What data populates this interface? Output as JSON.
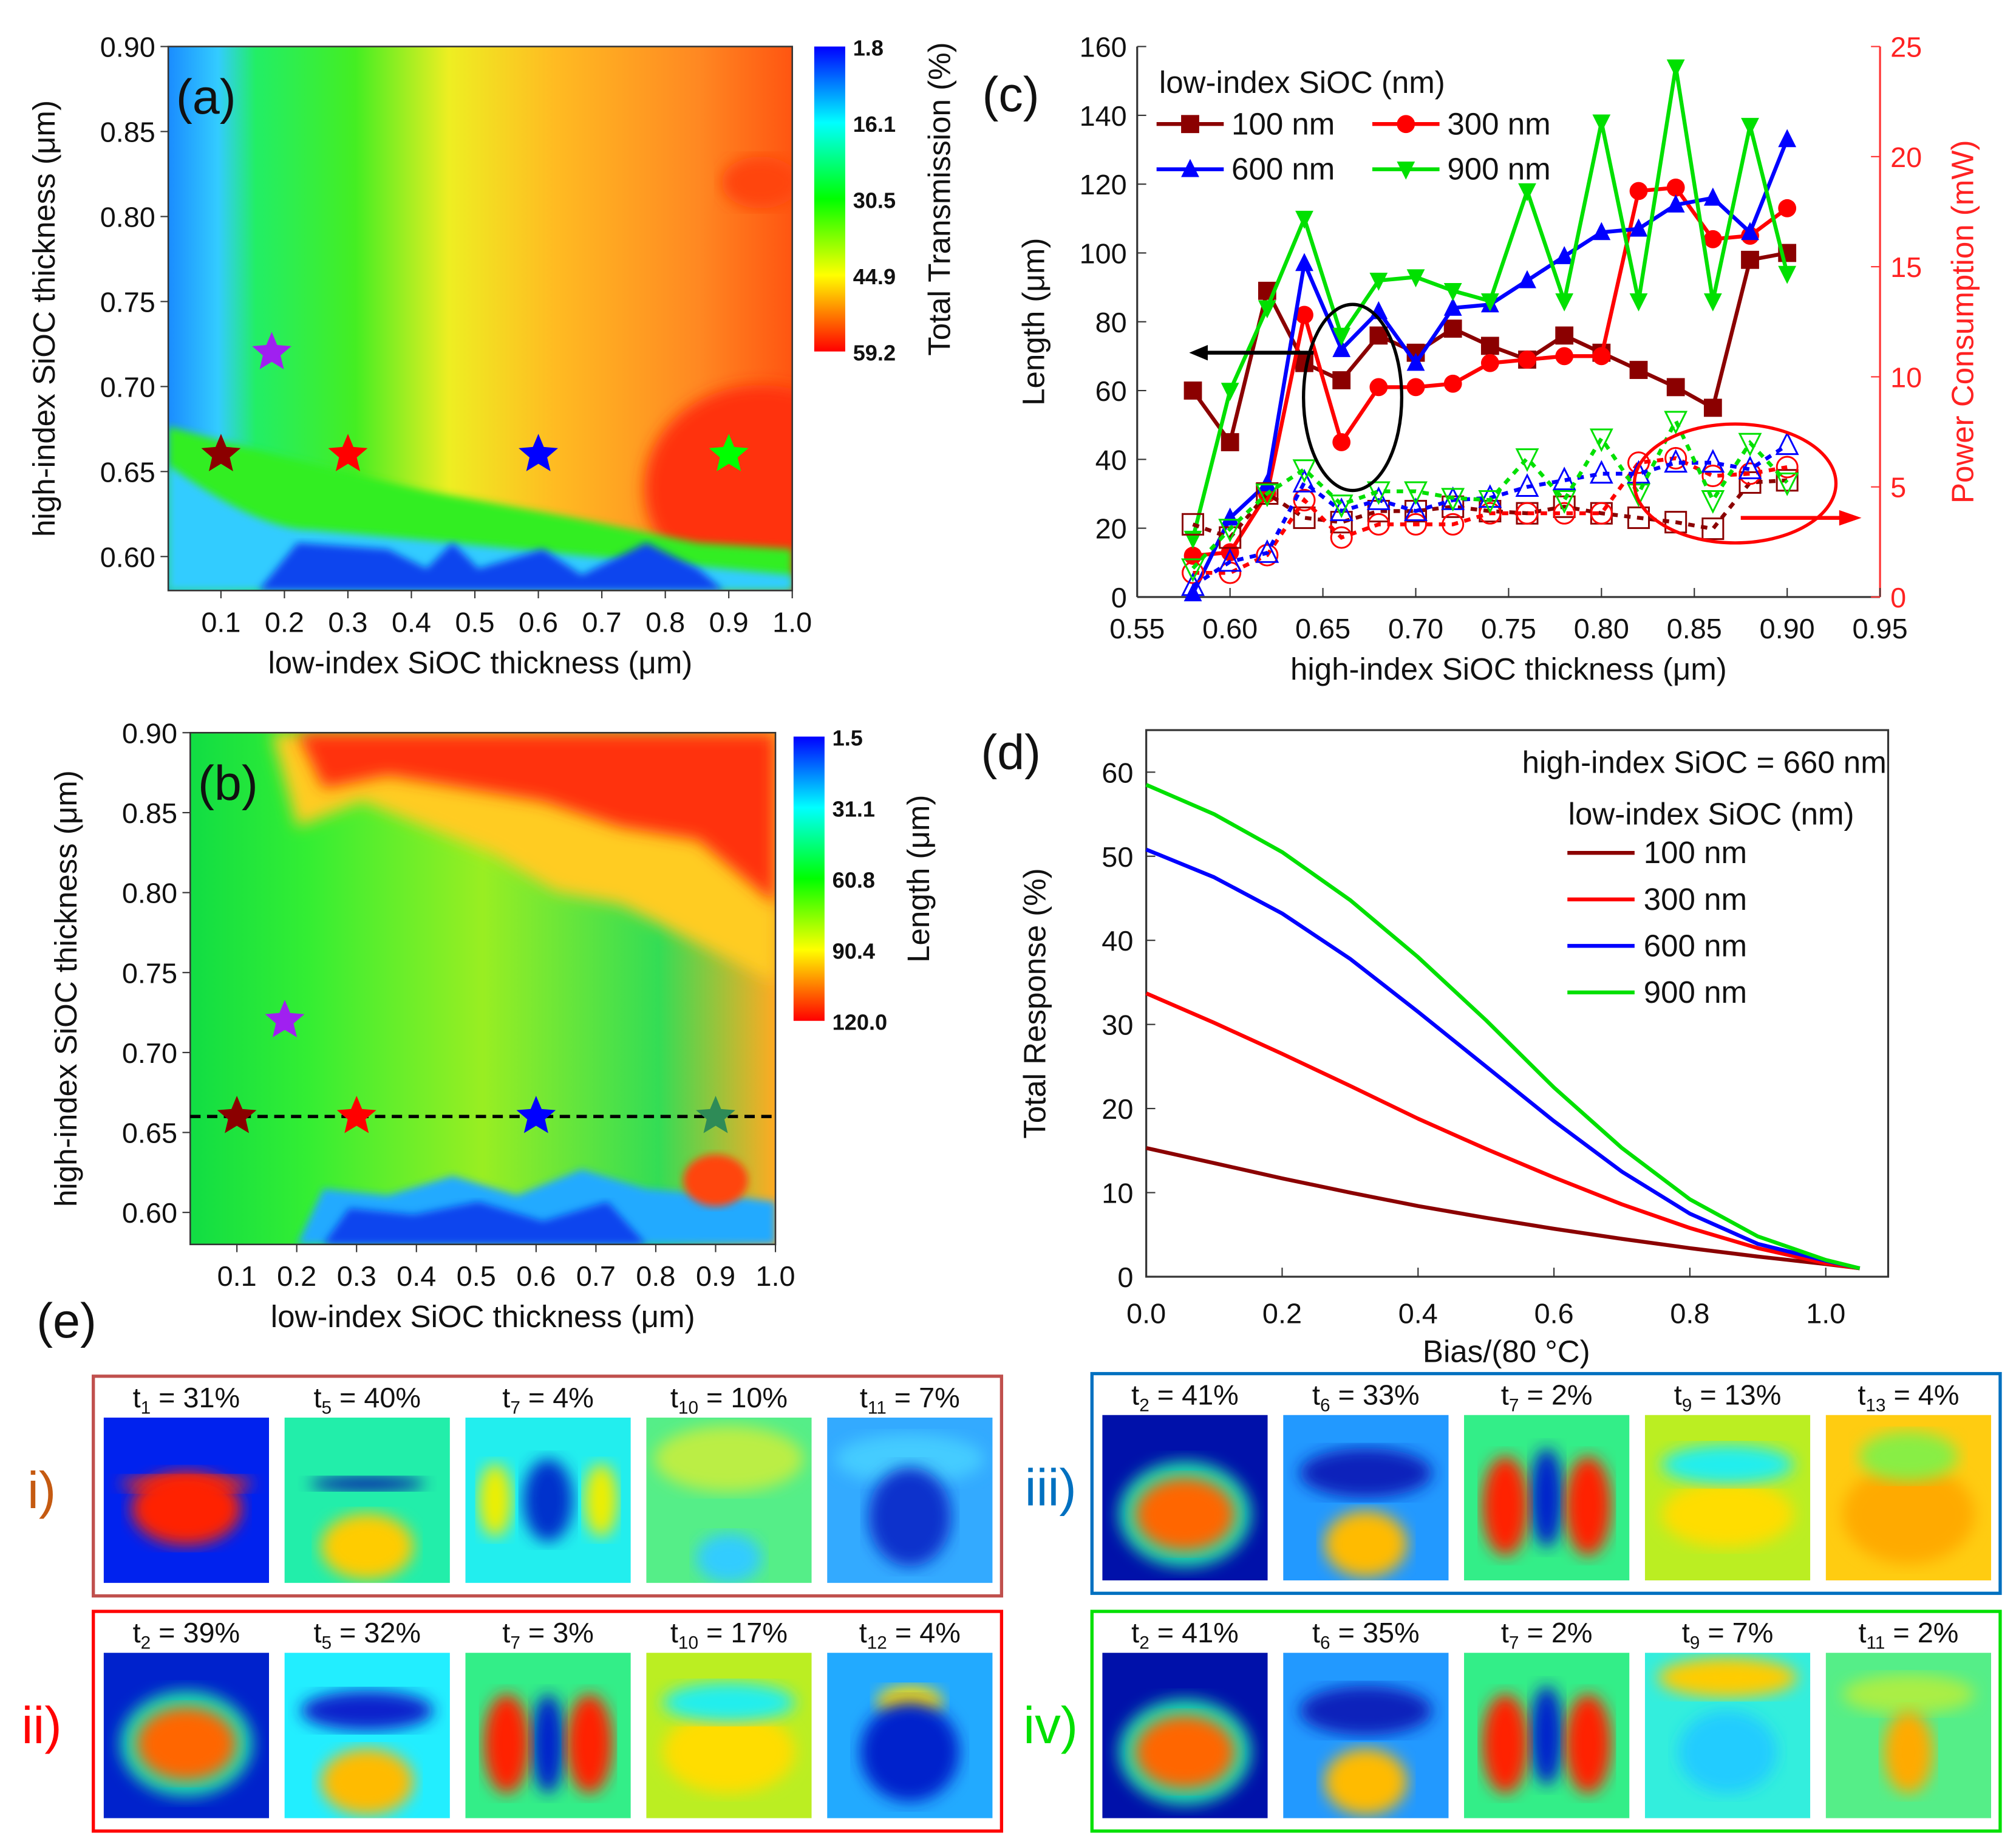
{
  "chart_data": [
    {
      "panel": "(a)",
      "type": "heatmap",
      "xlabel": "low-index SiOC thickness (μm)",
      "ylabel": "high-index SiOC thickness (μm)",
      "xticks": [
        "0.1",
        "0.2",
        "0.3",
        "0.4",
        "0.5",
        "0.6",
        "0.7",
        "0.8",
        "0.9",
        "1.0"
      ],
      "yticks": [
        "0.60",
        "0.65",
        "0.70",
        "0.75",
        "0.80",
        "0.85",
        "0.90"
      ],
      "xlim": [
        0.017,
        1.0
      ],
      "ylim": [
        0.58,
        0.9
      ],
      "colorbar": {
        "title": "Total Transmission (%)",
        "ticks": [
          "1.8",
          "16.1",
          "30.5",
          "44.9",
          "59.2"
        ],
        "colormap": [
          "#0000ff",
          "#00ffff",
          "#00ff00",
          "#ffff00",
          "#ff0000"
        ]
      },
      "markers": [
        {
          "x": 0.1,
          "y": 0.66,
          "color": "#8b0000",
          "shape": "star"
        },
        {
          "x": 0.18,
          "y": 0.72,
          "color": "#a020f0",
          "shape": "star"
        },
        {
          "x": 0.3,
          "y": 0.66,
          "color": "#ff0000",
          "shape": "star"
        },
        {
          "x": 0.6,
          "y": 0.66,
          "color": "#0000ff",
          "shape": "star"
        },
        {
          "x": 0.9,
          "y": 0.66,
          "color": "#00ff00",
          "shape": "star"
        }
      ]
    },
    {
      "panel": "(b)",
      "type": "heatmap",
      "xlabel": "low-index SiOC thickness (μm)",
      "ylabel": "high-index SiOC thickness (μm)",
      "xticks": [
        "0.1",
        "0.2",
        "0.3",
        "0.4",
        "0.5",
        "0.6",
        "0.7",
        "0.8",
        "0.9",
        "1.0"
      ],
      "yticks": [
        "0.60",
        "0.65",
        "0.70",
        "0.75",
        "0.80",
        "0.85",
        "0.90"
      ],
      "xlim": [
        0.022,
        1.0
      ],
      "ylim": [
        0.58,
        0.9
      ],
      "colorbar": {
        "title": "Length (μm)",
        "ticks": [
          "1.5",
          "31.1",
          "60.8",
          "90.4",
          "120.0"
        ],
        "colormap": [
          "#0000ff",
          "#00ffff",
          "#00ff00",
          "#ffff00",
          "#ff0000"
        ]
      },
      "reference_line": {
        "y": 0.66,
        "style": "dashed"
      },
      "markers": [
        {
          "x": 0.1,
          "y": 0.66,
          "color": "#8b0000",
          "shape": "star"
        },
        {
          "x": 0.18,
          "y": 0.72,
          "color": "#a020f0",
          "shape": "star"
        },
        {
          "x": 0.3,
          "y": 0.66,
          "color": "#ff0000",
          "shape": "star"
        },
        {
          "x": 0.6,
          "y": 0.66,
          "color": "#0000ff",
          "shape": "star"
        },
        {
          "x": 0.9,
          "y": 0.66,
          "color": "#2e8b57",
          "shape": "star"
        }
      ]
    },
    {
      "panel": "(c)",
      "type": "line",
      "xlabel": "high-index SiOC thickness (μm)",
      "ylabel": "Length (μm)",
      "y2label": "Power Consumption (mW)",
      "xlim": [
        0.55,
        0.95
      ],
      "ylim": [
        0,
        160
      ],
      "y2lim": [
        0,
        25
      ],
      "xticks": [
        "0.55",
        "0.60",
        "0.65",
        "0.70",
        "0.75",
        "0.80",
        "0.85",
        "0.90",
        "0.95"
      ],
      "yticks": [
        "0",
        "20",
        "40",
        "60",
        "80",
        "100",
        "120",
        "140",
        "160"
      ],
      "y2ticks": [
        "0",
        "5",
        "10",
        "15",
        "20",
        "25"
      ],
      "legend_title": "low-index SiOC (nm)",
      "legend_placement": "top-left",
      "x": [
        0.58,
        0.6,
        0.62,
        0.64,
        0.66,
        0.68,
        0.7,
        0.72,
        0.74,
        0.76,
        0.78,
        0.8,
        0.82,
        0.84,
        0.86,
        0.88,
        0.9
      ],
      "series": [
        {
          "name": "100 nm",
          "color": "#8b0000",
          "marker": "square",
          "axis": "left",
          "values": [
            60,
            45,
            89,
            68,
            63,
            76,
            71,
            78,
            73,
            69,
            76,
            71,
            66,
            61,
            55,
            98,
            100
          ]
        },
        {
          "name": "300 nm",
          "color": "#ff0000",
          "marker": "circle",
          "axis": "left",
          "values": [
            12,
            13,
            30,
            82,
            45,
            61,
            61,
            62,
            68,
            69,
            70,
            70,
            118,
            119,
            104,
            105,
            113
          ]
        },
        {
          "name": "600 nm",
          "color": "#0000ff",
          "marker": "triangle-up",
          "axis": "left",
          "values": [
            1,
            23,
            33,
            97,
            72,
            83,
            68,
            84,
            85,
            92,
            99,
            106,
            107,
            114,
            116,
            106,
            133
          ]
        },
        {
          "name": "900 nm",
          "color": "#00e000",
          "marker": "triangle-down",
          "axis": "left",
          "values": [
            17,
            60,
            84,
            110,
            76,
            92,
            93,
            89,
            86,
            118,
            86,
            138,
            86,
            154,
            86,
            137,
            94
          ]
        },
        {
          "color": "#8b0000",
          "marker": "square-open",
          "axis": "right",
          "style": "dashed",
          "values": [
            3.3,
            2.7,
            4.7,
            3.6,
            3.4,
            3.9,
            3.9,
            4.1,
            3.9,
            3.8,
            4.1,
            3.8,
            3.6,
            3.4,
            3.1,
            5.2,
            5.3
          ]
        },
        {
          "color": "#ff0000",
          "marker": "circle-open",
          "axis": "right",
          "style": "dashed",
          "values": [
            1.1,
            1.1,
            1.9,
            4.4,
            2.7,
            3.3,
            3.3,
            3.3,
            3.8,
            3.8,
            3.8,
            3.8,
            6.1,
            6.3,
            5.5,
            5.6,
            5.9
          ]
        },
        {
          "color": "#0000ff",
          "marker": "triangle-up-open",
          "axis": "right",
          "style": "dashed",
          "values": [
            0.5,
            1.6,
            2.0,
            5.2,
            3.9,
            4.4,
            3.9,
            4.4,
            4.5,
            5.0,
            5.3,
            5.6,
            5.6,
            6.1,
            6.1,
            5.8,
            6.9
          ]
        },
        {
          "color": "#00e000",
          "marker": "triangle-down-open",
          "axis": "right",
          "style": "dashed",
          "values": [
            1.3,
            3.1,
            4.7,
            5.8,
            4.2,
            4.8,
            4.8,
            4.5,
            4.4,
            6.3,
            4.4,
            7.2,
            4.7,
            8.0,
            4.4,
            7.0,
            5.2
          ]
        }
      ]
    },
    {
      "panel": "(d)",
      "type": "line",
      "xlabel": "Bias/(80 °C)",
      "ylabel": "Total Response (%)",
      "xlim": [
        0,
        1.1
      ],
      "ylim": [
        0,
        65
      ],
      "xticks": [
        "0.0",
        "0.2",
        "0.4",
        "0.6",
        "0.8",
        "1.0"
      ],
      "yticks": [
        "0",
        "10",
        "20",
        "30",
        "40",
        "50",
        "60"
      ],
      "annotation": "high-index SiOC = 660 nm",
      "legend_title": "low-index SiOC (nm)",
      "legend_placement": "top-right",
      "x": [
        0,
        0.1,
        0.2,
        0.3,
        0.4,
        0.5,
        0.6,
        0.7,
        0.8,
        0.9,
        1.0,
        1.05
      ],
      "series": [
        {
          "name": "100 nm",
          "color": "#8b0000",
          "values": [
            15.3,
            13.5,
            11.7,
            10.0,
            8.4,
            7.0,
            5.7,
            4.5,
            3.4,
            2.4,
            1.5,
            1.0
          ]
        },
        {
          "name": "300 nm",
          "color": "#ff0000",
          "values": [
            33.7,
            30.2,
            26.5,
            22.7,
            18.8,
            15.2,
            11.8,
            8.6,
            5.8,
            3.4,
            1.6,
            1.0
          ]
        },
        {
          "name": "600 nm",
          "color": "#0000ff",
          "values": [
            50.8,
            47.5,
            43.2,
            37.8,
            31.5,
            25.0,
            18.5,
            12.5,
            7.5,
            3.9,
            1.9,
            1.0
          ]
        },
        {
          "name": "900 nm",
          "color": "#00e000",
          "values": [
            58.5,
            55.0,
            50.5,
            44.8,
            38.0,
            30.5,
            22.5,
            15.3,
            9.2,
            4.8,
            2.0,
            1.0
          ]
        }
      ]
    }
  ],
  "panel_e": {
    "label": "(e)",
    "prefix": "t",
    "groups": [
      {
        "roman": "i)",
        "color": "#c0504d",
        "label_color": "#c55a11",
        "modes": [
          {
            "sub": "1",
            "value": "31%"
          },
          {
            "sub": "5",
            "value": "40%"
          },
          {
            "sub": "7",
            "value": "4%"
          },
          {
            "sub": "10",
            "value": "10%"
          },
          {
            "sub": "11",
            "value": "7%"
          }
        ]
      },
      {
        "roman": "ii)",
        "color": "#ff0000",
        "label_color": "#ff0000",
        "modes": [
          {
            "sub": "2",
            "value": "39%"
          },
          {
            "sub": "5",
            "value": "32%"
          },
          {
            "sub": "7",
            "value": "3%"
          },
          {
            "sub": "10",
            "value": "17%"
          },
          {
            "sub": "12",
            "value": "4%"
          }
        ]
      },
      {
        "roman": "iii)",
        "color": "#0070c0",
        "label_color": "#0070c0",
        "modes": [
          {
            "sub": "2",
            "value": "41%"
          },
          {
            "sub": "6",
            "value": "33%"
          },
          {
            "sub": "7",
            "value": "2%"
          },
          {
            "sub": "9",
            "value": "13%"
          },
          {
            "sub": "13",
            "value": "4%"
          }
        ]
      },
      {
        "roman": "iv)",
        "color": "#00e000",
        "label_color": "#00e000",
        "modes": [
          {
            "sub": "2",
            "value": "41%"
          },
          {
            "sub": "6",
            "value": "35%"
          },
          {
            "sub": "7",
            "value": "2%"
          },
          {
            "sub": "9",
            "value": "7%"
          },
          {
            "sub": "11",
            "value": "2%"
          }
        ]
      }
    ]
  }
}
